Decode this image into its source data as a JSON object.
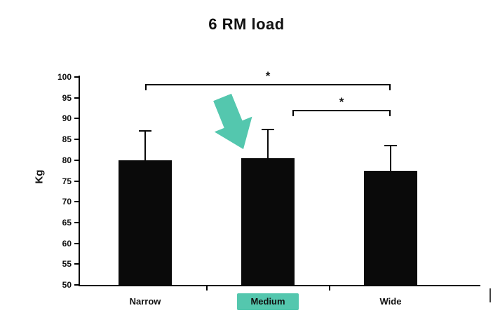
{
  "chart_data": {
    "type": "bar",
    "title": "6 RM load",
    "ylabel": "Kg",
    "ylim": [
      50,
      100
    ],
    "ytick_step": 5,
    "categories": [
      "Narrow",
      "Medium",
      "Wide"
    ],
    "values": [
      80,
      80.4,
      77.4
    ],
    "errors_upper": [
      7,
      6.9,
      6.1
    ],
    "bar_color": "#0a0a0a",
    "axis_color": "#000000",
    "highlight_category": "Medium",
    "highlight_color": "#54c7ae",
    "annotation": {
      "type": "down-arrow",
      "target": "Medium",
      "color": "#54c7ae"
    },
    "significance_brackets": [
      {
        "from": "Narrow",
        "to": "Wide",
        "label": "*"
      },
      {
        "from": "Medium",
        "to": "Wide",
        "label": "*"
      }
    ],
    "grid": false,
    "legend": false
  }
}
